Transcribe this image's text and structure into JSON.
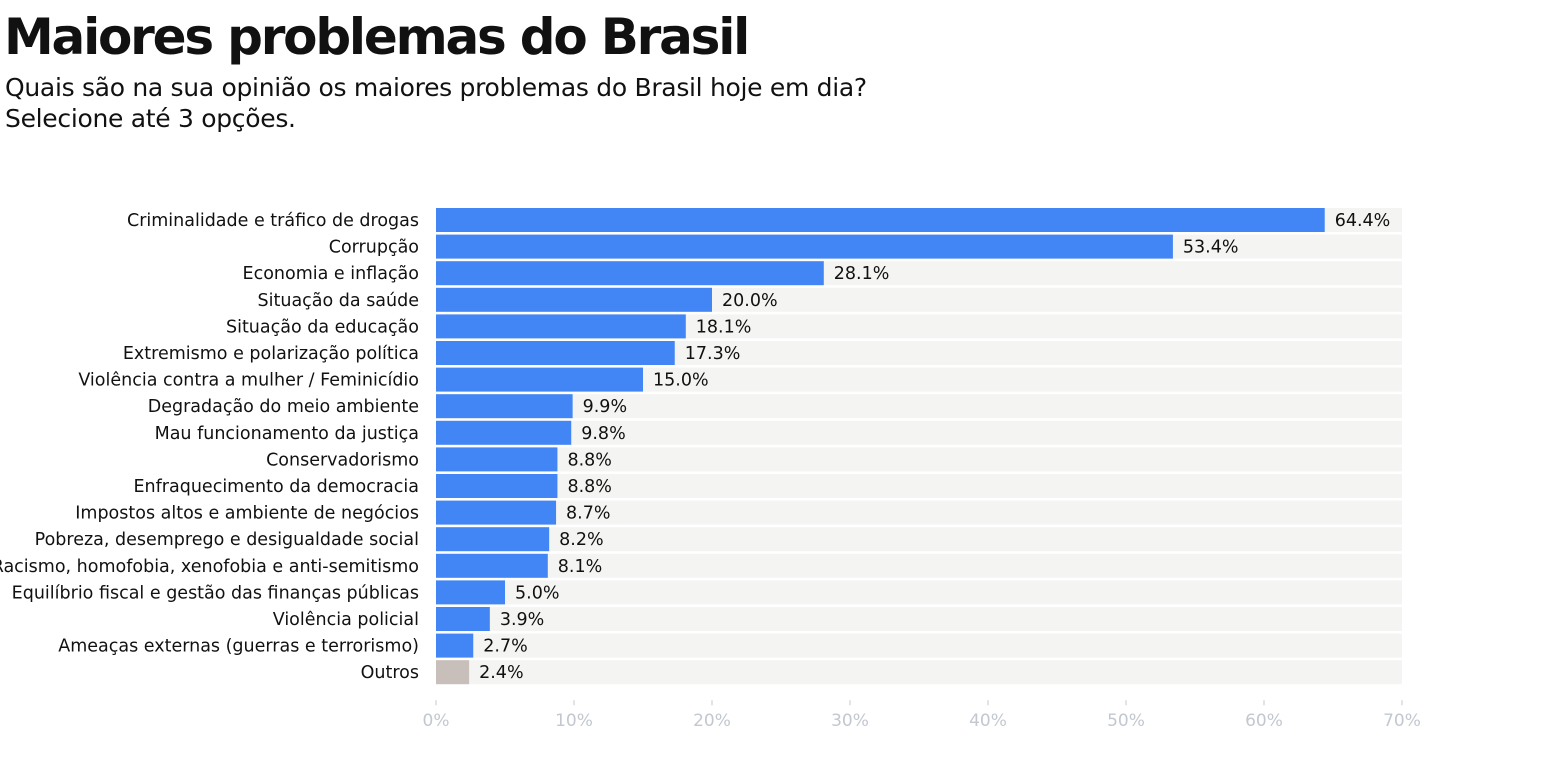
{
  "header": {
    "title": "Maiores problemas do Brasil",
    "subtitle_line1": "Quais são na sua opinião os maiores problemas do Brasil hoje em dia?",
    "subtitle_line2": "Selecione até 3 opções."
  },
  "colors": {
    "bar": "#4285f4",
    "bar_other": "#c8bfba",
    "track": "#f4f4f2",
    "tick": "#c3c7cf",
    "text": "#111111"
  },
  "chart_data": {
    "type": "bar",
    "orientation": "horizontal",
    "title": "Maiores problemas do Brasil",
    "subtitle": "Quais são na sua opinião os maiores problemas do Brasil hoje em dia? Selecione até 3 opções.",
    "xlabel": "",
    "ylabel": "",
    "xlim": [
      0,
      70
    ],
    "ticks": [
      0,
      10,
      20,
      30,
      40,
      50,
      60,
      70
    ],
    "tick_labels": [
      "0%",
      "10%",
      "20%",
      "30%",
      "40%",
      "50%",
      "60%",
      "70%"
    ],
    "grid": false,
    "categories": [
      "Criminalidade e tráfico de drogas",
      "Corrupção",
      "Economia e inflação",
      "Situação da saúde",
      "Situação da educação",
      "Extremismo e polarização política",
      "Violência contra a mulher / Feminicídio",
      "Degradação do meio ambiente",
      "Mau funcionamento da justiça",
      "Conservadorismo",
      "Enfraquecimento da democracia",
      "Impostos altos e ambiente de negócios",
      "Pobreza, desemprego e desigualdade social",
      "Racismo, homofobia, xenofobia e anti-semitismo",
      "Equilíbrio fiscal e gestão das finanças públicas",
      "Violência policial",
      "Ameaças externas (guerras e terrorismo)",
      "Outros"
    ],
    "values": [
      64.4,
      53.4,
      28.1,
      20.0,
      18.1,
      17.3,
      15.0,
      9.9,
      9.8,
      8.8,
      8.8,
      8.7,
      8.2,
      8.1,
      5.0,
      3.9,
      2.7,
      2.4
    ],
    "value_labels": [
      "64.4%",
      "53.4%",
      "28.1%",
      "20.0%",
      "18.1%",
      "17.3%",
      "15.0%",
      "9.9%",
      "9.8%",
      "8.8%",
      "8.8%",
      "8.7%",
      "8.2%",
      "8.1%",
      "5.0%",
      "3.9%",
      "2.7%",
      "2.4%"
    ],
    "highlight_category": "Outros"
  }
}
